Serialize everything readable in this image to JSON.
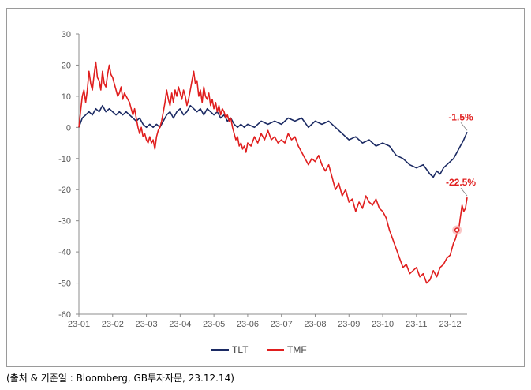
{
  "source_note": "(출처 & 기준일 : Bloomberg, GB투자자문, 23.12.14)",
  "colors": {
    "TLT": "#1b2a63",
    "TMF": "#e01e1e",
    "annotation": "#e01e1e",
    "axis": "#8c8c8c",
    "tick": "#595959"
  },
  "chart_data": {
    "type": "line",
    "title": "",
    "xlabel": "",
    "ylabel": "",
    "ylim": [
      -60,
      30
    ],
    "yticks": [
      30,
      20,
      10,
      0,
      -10,
      -20,
      -30,
      -40,
      -50,
      -60
    ],
    "xlim": [
      0,
      11.5
    ],
    "xticks": [
      "23-01",
      "23-02",
      "23-03",
      "23-04",
      "23-05",
      "23-06",
      "23-07",
      "23-08",
      "23-09",
      "23-10",
      "23-11",
      "23-12"
    ],
    "grid": false,
    "legend": "bottom",
    "series": [
      {
        "name": "TLT",
        "color": "#1b2a63",
        "points": [
          [
            0.0,
            0
          ],
          [
            0.1,
            3
          ],
          [
            0.2,
            4
          ],
          [
            0.3,
            5
          ],
          [
            0.4,
            4
          ],
          [
            0.5,
            6
          ],
          [
            0.6,
            5
          ],
          [
            0.7,
            7
          ],
          [
            0.8,
            5
          ],
          [
            0.9,
            6
          ],
          [
            1.0,
            5
          ],
          [
            1.1,
            4
          ],
          [
            1.2,
            5
          ],
          [
            1.3,
            4
          ],
          [
            1.4,
            5
          ],
          [
            1.5,
            4
          ],
          [
            1.6,
            3
          ],
          [
            1.7,
            2
          ],
          [
            1.8,
            3
          ],
          [
            1.9,
            1
          ],
          [
            2.0,
            0
          ],
          [
            2.1,
            1
          ],
          [
            2.2,
            0
          ],
          [
            2.3,
            1
          ],
          [
            2.4,
            0
          ],
          [
            2.5,
            2
          ],
          [
            2.6,
            4
          ],
          [
            2.7,
            5
          ],
          [
            2.8,
            3
          ],
          [
            2.9,
            5
          ],
          [
            3.0,
            6
          ],
          [
            3.1,
            4
          ],
          [
            3.2,
            5
          ],
          [
            3.3,
            7
          ],
          [
            3.4,
            6
          ],
          [
            3.5,
            5
          ],
          [
            3.6,
            6
          ],
          [
            3.7,
            4
          ],
          [
            3.8,
            6
          ],
          [
            3.9,
            5
          ],
          [
            4.0,
            4
          ],
          [
            4.1,
            5
          ],
          [
            4.2,
            3
          ],
          [
            4.3,
            4
          ],
          [
            4.4,
            2
          ],
          [
            4.5,
            3
          ],
          [
            4.6,
            1
          ],
          [
            4.7,
            0
          ],
          [
            4.8,
            1
          ],
          [
            4.9,
            0
          ],
          [
            5.0,
            1
          ],
          [
            5.2,
            0
          ],
          [
            5.4,
            2
          ],
          [
            5.6,
            1
          ],
          [
            5.8,
            2
          ],
          [
            6.0,
            1
          ],
          [
            6.2,
            3
          ],
          [
            6.4,
            2
          ],
          [
            6.6,
            3
          ],
          [
            6.8,
            0
          ],
          [
            7.0,
            2
          ],
          [
            7.2,
            1
          ],
          [
            7.4,
            2
          ],
          [
            7.6,
            0
          ],
          [
            7.8,
            -2
          ],
          [
            8.0,
            -4
          ],
          [
            8.2,
            -3
          ],
          [
            8.4,
            -5
          ],
          [
            8.6,
            -4
          ],
          [
            8.8,
            -6
          ],
          [
            9.0,
            -5
          ],
          [
            9.2,
            -6
          ],
          [
            9.4,
            -9
          ],
          [
            9.6,
            -10
          ],
          [
            9.8,
            -12
          ],
          [
            10.0,
            -13
          ],
          [
            10.2,
            -12
          ],
          [
            10.4,
            -15
          ],
          [
            10.5,
            -16
          ],
          [
            10.6,
            -14
          ],
          [
            10.7,
            -15
          ],
          [
            10.8,
            -13
          ],
          [
            10.9,
            -12
          ],
          [
            11.0,
            -11
          ],
          [
            11.1,
            -10
          ],
          [
            11.2,
            -8
          ],
          [
            11.3,
            -6
          ],
          [
            11.35,
            -5
          ],
          [
            11.4,
            -4
          ],
          [
            11.5,
            -1.5
          ]
        ]
      },
      {
        "name": "TMF",
        "color": "#e01e1e",
        "points": [
          [
            0.0,
            0
          ],
          [
            0.05,
            5
          ],
          [
            0.1,
            10
          ],
          [
            0.15,
            12
          ],
          [
            0.2,
            8
          ],
          [
            0.25,
            12
          ],
          [
            0.3,
            18
          ],
          [
            0.35,
            14
          ],
          [
            0.4,
            12
          ],
          [
            0.45,
            17
          ],
          [
            0.5,
            21
          ],
          [
            0.55,
            16
          ],
          [
            0.6,
            15
          ],
          [
            0.65,
            12
          ],
          [
            0.7,
            18
          ],
          [
            0.75,
            14
          ],
          [
            0.8,
            13
          ],
          [
            0.85,
            17
          ],
          [
            0.9,
            20
          ],
          [
            0.95,
            17
          ],
          [
            1.0,
            16
          ],
          [
            1.05,
            14
          ],
          [
            1.1,
            12
          ],
          [
            1.15,
            10
          ],
          [
            1.2,
            11
          ],
          [
            1.25,
            13
          ],
          [
            1.3,
            9
          ],
          [
            1.35,
            11
          ],
          [
            1.4,
            10
          ],
          [
            1.5,
            8
          ],
          [
            1.55,
            6
          ],
          [
            1.6,
            4
          ],
          [
            1.65,
            6
          ],
          [
            1.7,
            3
          ],
          [
            1.75,
            0
          ],
          [
            1.8,
            -2
          ],
          [
            1.85,
            0
          ],
          [
            1.9,
            -3
          ],
          [
            1.95,
            -2
          ],
          [
            2.0,
            -4
          ],
          [
            2.05,
            -5
          ],
          [
            2.1,
            -3
          ],
          [
            2.15,
            -5
          ],
          [
            2.2,
            -4
          ],
          [
            2.25,
            -7
          ],
          [
            2.3,
            -3
          ],
          [
            2.35,
            -1
          ],
          [
            2.4,
            0
          ],
          [
            2.45,
            2
          ],
          [
            2.5,
            5
          ],
          [
            2.55,
            8
          ],
          [
            2.6,
            12
          ],
          [
            2.65,
            9
          ],
          [
            2.7,
            7
          ],
          [
            2.75,
            11
          ],
          [
            2.8,
            8
          ],
          [
            2.85,
            12
          ],
          [
            2.9,
            10
          ],
          [
            2.95,
            13
          ],
          [
            3.0,
            11
          ],
          [
            3.05,
            9
          ],
          [
            3.1,
            12
          ],
          [
            3.15,
            10
          ],
          [
            3.2,
            7
          ],
          [
            3.25,
            9
          ],
          [
            3.3,
            12
          ],
          [
            3.35,
            15
          ],
          [
            3.4,
            18
          ],
          [
            3.45,
            14
          ],
          [
            3.5,
            15
          ],
          [
            3.55,
            10
          ],
          [
            3.6,
            12
          ],
          [
            3.65,
            8
          ],
          [
            3.7,
            13
          ],
          [
            3.75,
            10
          ],
          [
            3.8,
            9
          ],
          [
            3.85,
            11
          ],
          [
            3.9,
            7
          ],
          [
            3.95,
            9
          ],
          [
            4.0,
            6
          ],
          [
            4.05,
            8
          ],
          [
            4.1,
            5
          ],
          [
            4.15,
            7
          ],
          [
            4.2,
            4
          ],
          [
            4.25,
            6
          ],
          [
            4.3,
            5
          ],
          [
            4.35,
            3
          ],
          [
            4.4,
            4
          ],
          [
            4.45,
            2
          ],
          [
            4.5,
            3
          ],
          [
            4.55,
            0
          ],
          [
            4.6,
            -2
          ],
          [
            4.65,
            -4
          ],
          [
            4.7,
            -3
          ],
          [
            4.75,
            -6
          ],
          [
            4.8,
            -5
          ],
          [
            4.85,
            -7
          ],
          [
            4.9,
            -6
          ],
          [
            4.95,
            -8
          ],
          [
            5.0,
            -5
          ],
          [
            5.1,
            -6
          ],
          [
            5.2,
            -3
          ],
          [
            5.3,
            -5
          ],
          [
            5.4,
            -2
          ],
          [
            5.5,
            -4
          ],
          [
            5.6,
            -1
          ],
          [
            5.7,
            -4
          ],
          [
            5.8,
            -3
          ],
          [
            5.9,
            -5
          ],
          [
            6.0,
            -4
          ],
          [
            6.1,
            -5
          ],
          [
            6.2,
            -2
          ],
          [
            6.3,
            -4
          ],
          [
            6.4,
            -3
          ],
          [
            6.5,
            -6
          ],
          [
            6.6,
            -8
          ],
          [
            6.7,
            -10
          ],
          [
            6.8,
            -12
          ],
          [
            6.9,
            -10
          ],
          [
            7.0,
            -11
          ],
          [
            7.1,
            -9
          ],
          [
            7.2,
            -12
          ],
          [
            7.3,
            -14
          ],
          [
            7.4,
            -12
          ],
          [
            7.5,
            -16
          ],
          [
            7.6,
            -20
          ],
          [
            7.7,
            -18
          ],
          [
            7.8,
            -22
          ],
          [
            7.9,
            -20
          ],
          [
            8.0,
            -24
          ],
          [
            8.1,
            -23
          ],
          [
            8.2,
            -27
          ],
          [
            8.3,
            -24
          ],
          [
            8.4,
            -26
          ],
          [
            8.5,
            -22
          ],
          [
            8.6,
            -24
          ],
          [
            8.7,
            -25
          ],
          [
            8.8,
            -23
          ],
          [
            8.9,
            -26
          ],
          [
            9.0,
            -27
          ],
          [
            9.1,
            -29
          ],
          [
            9.2,
            -33
          ],
          [
            9.3,
            -36
          ],
          [
            9.4,
            -39
          ],
          [
            9.5,
            -42
          ],
          [
            9.6,
            -45
          ],
          [
            9.7,
            -44
          ],
          [
            9.8,
            -47
          ],
          [
            9.9,
            -46
          ],
          [
            10.0,
            -45
          ],
          [
            10.1,
            -48
          ],
          [
            10.2,
            -47
          ],
          [
            10.3,
            -50
          ],
          [
            10.4,
            -49
          ],
          [
            10.5,
            -46
          ],
          [
            10.6,
            -48
          ],
          [
            10.7,
            -45
          ],
          [
            10.8,
            -44
          ],
          [
            10.9,
            -42
          ],
          [
            11.0,
            -41
          ],
          [
            11.05,
            -39
          ],
          [
            11.1,
            -37
          ],
          [
            11.15,
            -36
          ],
          [
            11.2,
            -34
          ],
          [
            11.25,
            -33
          ],
          [
            11.3,
            -29
          ],
          [
            11.35,
            -25
          ],
          [
            11.4,
            -27
          ],
          [
            11.45,
            -26
          ],
          [
            11.5,
            -22.5
          ]
        ]
      }
    ],
    "annotations": [
      {
        "text": "-1.5%",
        "x": 11.5,
        "y": -1.5,
        "offset": "above"
      },
      {
        "text": "-22.5%",
        "x": 11.5,
        "y": -22.5,
        "offset": "above"
      }
    ],
    "marker": {
      "series": "TMF",
      "x": 11.2,
      "y": -33
    }
  }
}
